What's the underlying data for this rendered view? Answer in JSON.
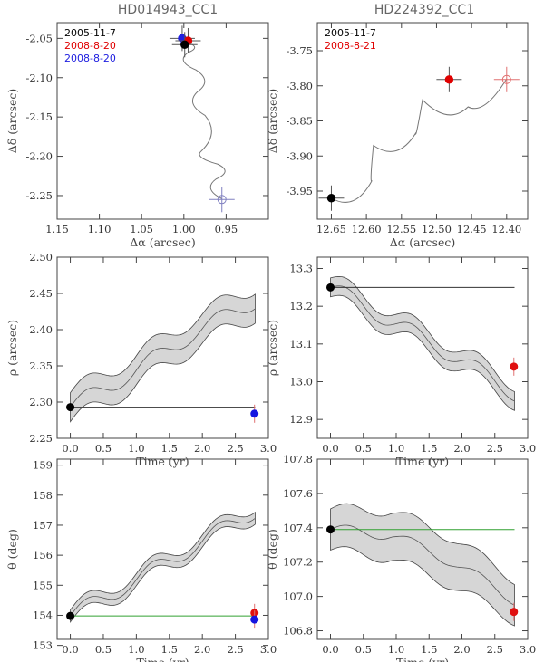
{
  "chart_data": [
    {
      "type": "scatter",
      "panel": "ra-dec",
      "title": "HD014943_CC1",
      "xlabel": "Δα (arcsec)",
      "ylabel": "Δδ (arcsec)",
      "xlim": [
        1.15,
        0.9
      ],
      "ylim": [
        -2.28,
        -2.03
      ],
      "xticks": [
        "1.15",
        "1.10",
        "1.05",
        "1.00",
        "0.95"
      ],
      "yticks": [
        "-2.05",
        "-2.10",
        "-2.15",
        "-2.20",
        "-2.25"
      ],
      "legend": [
        {
          "label": "2005-11-7",
          "color": "#000000"
        },
        {
          "label": "2008-8-20",
          "color": "#e00000"
        },
        {
          "label": "2008-8-20",
          "color": "#2020e0"
        }
      ],
      "track": [
        [
          0.999,
          -2.054
        ],
        [
          0.995,
          -2.068
        ],
        [
          0.986,
          -2.09
        ],
        [
          0.984,
          -2.118
        ],
        [
          0.975,
          -2.148
        ],
        [
          0.979,
          -2.193
        ],
        [
          0.96,
          -2.21
        ],
        [
          0.962,
          -2.229
        ],
        [
          0.955,
          -2.254
        ]
      ],
      "points": [
        {
          "x": 1.002,
          "y": -2.05,
          "color": "#2020e0",
          "filled": true
        },
        {
          "x": 0.995,
          "y": -2.053,
          "color": "#e00000",
          "filled": true
        },
        {
          "x": 0.999,
          "y": -2.058,
          "color": "#000000",
          "filled": true
        },
        {
          "x": 0.955,
          "y": -2.255,
          "color": "#8080c0",
          "filled": false
        }
      ]
    },
    {
      "type": "scatter",
      "panel": "ra-dec",
      "title": "HD224392_CC1",
      "xlabel": "Δα (arcsec)",
      "ylabel": "Δδ (arcsec)",
      "xlim": [
        12.67,
        12.37
      ],
      "ylim": [
        -3.99,
        -3.71
      ],
      "xticks": [
        "12.65",
        "12.60",
        "12.55",
        "12.50",
        "12.45",
        "12.40"
      ],
      "yticks": [
        "-3.75",
        "-3.80",
        "-3.85",
        "-3.90",
        "-3.95"
      ],
      "legend": [
        {
          "label": "2005-11-7",
          "color": "#000000"
        },
        {
          "label": "2008-8-21",
          "color": "#e00000"
        }
      ],
      "track": [
        [
          12.65,
          -3.96
        ],
        [
          12.592,
          -3.935
        ],
        [
          12.59,
          -3.885
        ],
        [
          12.53,
          -3.868
        ],
        [
          12.52,
          -3.82
        ],
        [
          12.455,
          -3.83
        ],
        [
          12.4,
          -3.79
        ]
      ],
      "points": [
        {
          "x": 12.65,
          "y": -3.96,
          "color": "#000000",
          "filled": true
        },
        {
          "x": 12.482,
          "y": -3.791,
          "color": "#e00000",
          "filled": true
        },
        {
          "x": 12.4,
          "y": -3.791,
          "color": "#e07070",
          "filled": false
        }
      ]
    },
    {
      "type": "line",
      "panel": "time",
      "xlabel": "Time (yr)",
      "ylabel": "ρ (arcsec)",
      "xlim": [
        -0.2,
        3.0
      ],
      "ylim": [
        2.25,
        2.5
      ],
      "xticks": [
        "0.0",
        "0.5",
        "1.0",
        "1.5",
        "2.0",
        "2.5",
        "3.0"
      ],
      "yticks": [
        "2.25",
        "2.30",
        "2.35",
        "2.40",
        "2.45",
        "2.50"
      ],
      "band": {
        "center": [
          2.293,
          2.34,
          2.395,
          2.44
        ],
        "half_width": 0.02
      },
      "reference": {
        "y": 2.293,
        "x": [
          0.0,
          2.8
        ],
        "color": "#333333"
      },
      "points": [
        {
          "x": 0.0,
          "y": 2.293,
          "color": "#000000"
        },
        {
          "x": 2.79,
          "y": 2.284,
          "color": "#1515e0"
        }
      ]
    },
    {
      "type": "line",
      "panel": "time",
      "xlabel": "Time (yr)",
      "ylabel": "ρ (arcsec)",
      "xlim": [
        -0.2,
        3.0
      ],
      "ylim": [
        12.85,
        13.33
      ],
      "xticks": [
        "0.0",
        "0.5",
        "1.0",
        "1.5",
        "2.0",
        "2.5",
        "3.0"
      ],
      "yticks": [
        "12.9",
        "13.0",
        "13.1",
        "13.2",
        "13.3"
      ],
      "band": {
        "center": [
          13.25,
          13.16,
          13.07,
          12.97
        ],
        "half_width": 0.025
      },
      "reference": {
        "y": 13.25,
        "x": [
          0.0,
          2.8
        ],
        "color": "#333333"
      },
      "points": [
        {
          "x": 0.0,
          "y": 13.25,
          "color": "#000000"
        },
        {
          "x": 2.79,
          "y": 13.04,
          "color": "#e01010"
        }
      ]
    },
    {
      "type": "line",
      "panel": "time",
      "xlabel": "Time (yr)",
      "ylabel": "θ (deg)",
      "xlim": [
        -0.2,
        3.0
      ],
      "ylim": [
        153.2,
        159.2
      ],
      "xticks": [
        "0.0",
        "0.5",
        "1.0",
        "1.5",
        "2.0",
        "2.5",
        "3.0"
      ],
      "yticks": [
        "153",
        "154",
        "155",
        "156",
        "157",
        "158",
        "159"
      ],
      "band": {
        "center": [
          153.98,
          155.1,
          156.3,
          157.5
        ],
        "half_width": 0.2
      },
      "reference": {
        "y": 153.98,
        "x": [
          0.0,
          2.8
        ],
        "color": "#30a030"
      },
      "points": [
        {
          "x": 0.0,
          "y": 153.98,
          "color": "#000000"
        },
        {
          "x": 2.79,
          "y": 154.08,
          "color": "#e01010"
        },
        {
          "x": 2.79,
          "y": 153.86,
          "color": "#1515e0"
        }
      ]
    },
    {
      "type": "line",
      "panel": "time",
      "xlabel": "Time (yr)",
      "ylabel": "θ (deg)",
      "xlim": [
        -0.2,
        3.0
      ],
      "ylim": [
        106.75,
        107.8
      ],
      "xticks": [
        "0.0",
        "0.5",
        "1.0",
        "1.5",
        "2.0",
        "2.5",
        "3.0"
      ],
      "yticks": [
        "106.8",
        "107.0",
        "107.2",
        "107.4",
        "107.6",
        "107.8"
      ],
      "band": {
        "center": [
          107.39,
          107.36,
          107.2,
          106.98
        ],
        "half_width_start": 0.12,
        "half_width_end": 0.12,
        "half_width_mid": 0.14
      },
      "reference": {
        "y": 107.39,
        "x": [
          0.0,
          2.8
        ],
        "color": "#30a030"
      },
      "points": [
        {
          "x": 0.0,
          "y": 107.39,
          "color": "#000000"
        },
        {
          "x": 2.79,
          "y": 106.91,
          "color": "#e01010"
        }
      ]
    }
  ]
}
